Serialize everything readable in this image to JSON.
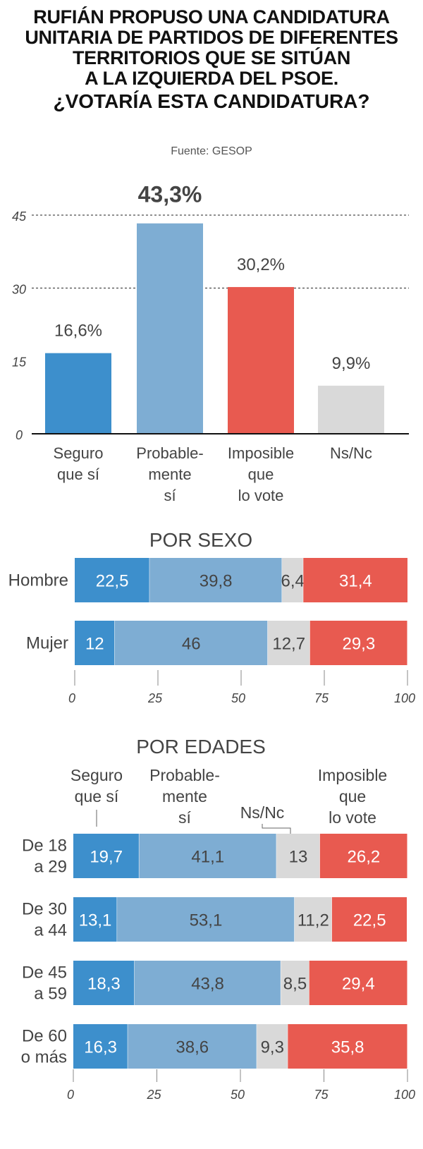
{
  "title": {
    "lines": [
      "RUFIÁN PROPUSO UNA CANDIDATURA",
      "UNITARIA DE PARTIDOS DE DIFERENTES",
      "TERRITORIOS QUE SE SITÚAN",
      "A LA IZQUIERDA DEL PSOE."
    ],
    "question": "¿VOTARÍA ESTA CANDIDATURA?"
  },
  "source": "Fuente: GESOP",
  "colors": {
    "seguro": "#3d8fcc",
    "probable": "#7eadd3",
    "nsnc": "#d9d9d9",
    "imposible": "#e85a50"
  },
  "chart_data": [
    {
      "type": "bar",
      "categories": [
        [
          "Seguro",
          "que sí"
        ],
        [
          "Probable-",
          "mente",
          "sí"
        ],
        [
          "Imposible",
          "que",
          "lo vote"
        ],
        [
          "Ns/Nc"
        ]
      ],
      "values": [
        16.6,
        43.3,
        30.2,
        9.9
      ],
      "value_labels": [
        "16,6%",
        "43,3%",
        "30,2%",
        "9,9%"
      ],
      "highlight_index": 1,
      "color_keys": [
        "seguro",
        "probable",
        "imposible",
        "nsnc"
      ],
      "yticks": [
        "0",
        "15",
        "30",
        "45"
      ],
      "ylim": [
        0,
        50
      ]
    },
    {
      "type": "bar",
      "stacked": true,
      "orientation": "horizontal",
      "title": "POR SEXO",
      "categories": [
        [
          "Hombre"
        ],
        [
          "Mujer"
        ]
      ],
      "series": [
        {
          "key": "seguro",
          "values": [
            22.5,
            12
          ],
          "labels": [
            "22,5",
            "12"
          ]
        },
        {
          "key": "probable",
          "values": [
            39.8,
            46
          ],
          "labels": [
            "39,8",
            "46"
          ]
        },
        {
          "key": "nsnc",
          "values": [
            6.4,
            12.7
          ],
          "labels": [
            "6,4",
            "12,7"
          ]
        },
        {
          "key": "imposible",
          "values": [
            31.4,
            29.3
          ],
          "labels": [
            "31,4",
            "29,3"
          ]
        }
      ],
      "xticks": [
        "0",
        "25",
        "50",
        "75",
        "100"
      ],
      "xlim": [
        0,
        100
      ]
    },
    {
      "type": "bar",
      "stacked": true,
      "orientation": "horizontal",
      "title": "POR EDADES",
      "legend": {
        "seguro": [
          "Seguro",
          "que sí"
        ],
        "probable": [
          "Probable-",
          "mente",
          "sí"
        ],
        "nsnc": [
          "Ns/Nc"
        ],
        "imposible": [
          "Imposible",
          "que",
          "lo vote"
        ]
      },
      "categories": [
        [
          "De 18",
          "a 29"
        ],
        [
          "De 30",
          "a 44"
        ],
        [
          "De 45",
          "a 59"
        ],
        [
          "De 60",
          "o más"
        ]
      ],
      "series": [
        {
          "key": "seguro",
          "values": [
            19.7,
            13.1,
            18.3,
            16.3
          ],
          "labels": [
            "19,7",
            "13,1",
            "18,3",
            "16,3"
          ]
        },
        {
          "key": "probable",
          "values": [
            41.1,
            53.1,
            43.8,
            38.6
          ],
          "labels": [
            "41,1",
            "53,1",
            "43,8",
            "38,6"
          ]
        },
        {
          "key": "nsnc",
          "values": [
            13,
            11.2,
            8.5,
            9.3
          ],
          "labels": [
            "13",
            "11,2",
            "8,5",
            "9,3"
          ]
        },
        {
          "key": "imposible",
          "values": [
            26.2,
            22.5,
            29.4,
            35.8
          ],
          "labels": [
            "26,2",
            "22,5",
            "29,4",
            "35,8"
          ]
        }
      ],
      "xticks": [
        "0",
        "25",
        "50",
        "75",
        "100"
      ],
      "xlim": [
        0,
        100
      ]
    }
  ]
}
